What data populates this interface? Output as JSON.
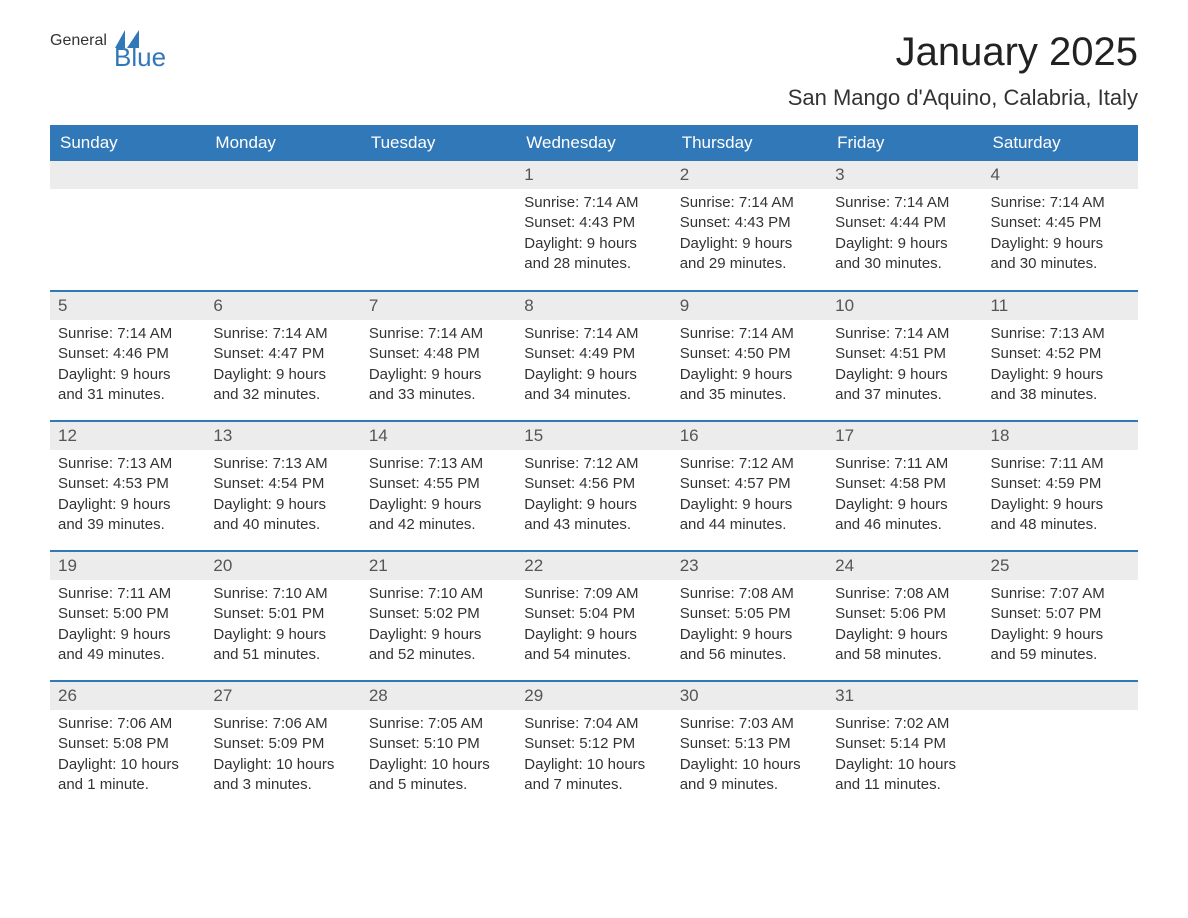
{
  "logo": {
    "text1": "General",
    "text2": "Blue"
  },
  "title": "January 2025",
  "location": "San Mango d'Aquino, Calabria, Italy",
  "colors": {
    "accent": "#3178b8",
    "header_text": "#ffffff",
    "day_num_bg": "#ececec",
    "body_text": "#333333",
    "background": "#ffffff"
  },
  "day_headers": [
    "Sunday",
    "Monday",
    "Tuesday",
    "Wednesday",
    "Thursday",
    "Friday",
    "Saturday"
  ],
  "weeks": [
    [
      {
        "blank": true
      },
      {
        "blank": true
      },
      {
        "blank": true
      },
      {
        "day": "1",
        "sunrise": "Sunrise: 7:14 AM",
        "sunset": "Sunset: 4:43 PM",
        "daylight": "Daylight: 9 hours and 28 minutes."
      },
      {
        "day": "2",
        "sunrise": "Sunrise: 7:14 AM",
        "sunset": "Sunset: 4:43 PM",
        "daylight": "Daylight: 9 hours and 29 minutes."
      },
      {
        "day": "3",
        "sunrise": "Sunrise: 7:14 AM",
        "sunset": "Sunset: 4:44 PM",
        "daylight": "Daylight: 9 hours and 30 minutes."
      },
      {
        "day": "4",
        "sunrise": "Sunrise: 7:14 AM",
        "sunset": "Sunset: 4:45 PM",
        "daylight": "Daylight: 9 hours and 30 minutes."
      }
    ],
    [
      {
        "day": "5",
        "sunrise": "Sunrise: 7:14 AM",
        "sunset": "Sunset: 4:46 PM",
        "daylight": "Daylight: 9 hours and 31 minutes."
      },
      {
        "day": "6",
        "sunrise": "Sunrise: 7:14 AM",
        "sunset": "Sunset: 4:47 PM",
        "daylight": "Daylight: 9 hours and 32 minutes."
      },
      {
        "day": "7",
        "sunrise": "Sunrise: 7:14 AM",
        "sunset": "Sunset: 4:48 PM",
        "daylight": "Daylight: 9 hours and 33 minutes."
      },
      {
        "day": "8",
        "sunrise": "Sunrise: 7:14 AM",
        "sunset": "Sunset: 4:49 PM",
        "daylight": "Daylight: 9 hours and 34 minutes."
      },
      {
        "day": "9",
        "sunrise": "Sunrise: 7:14 AM",
        "sunset": "Sunset: 4:50 PM",
        "daylight": "Daylight: 9 hours and 35 minutes."
      },
      {
        "day": "10",
        "sunrise": "Sunrise: 7:14 AM",
        "sunset": "Sunset: 4:51 PM",
        "daylight": "Daylight: 9 hours and 37 minutes."
      },
      {
        "day": "11",
        "sunrise": "Sunrise: 7:13 AM",
        "sunset": "Sunset: 4:52 PM",
        "daylight": "Daylight: 9 hours and 38 minutes."
      }
    ],
    [
      {
        "day": "12",
        "sunrise": "Sunrise: 7:13 AM",
        "sunset": "Sunset: 4:53 PM",
        "daylight": "Daylight: 9 hours and 39 minutes."
      },
      {
        "day": "13",
        "sunrise": "Sunrise: 7:13 AM",
        "sunset": "Sunset: 4:54 PM",
        "daylight": "Daylight: 9 hours and 40 minutes."
      },
      {
        "day": "14",
        "sunrise": "Sunrise: 7:13 AM",
        "sunset": "Sunset: 4:55 PM",
        "daylight": "Daylight: 9 hours and 42 minutes."
      },
      {
        "day": "15",
        "sunrise": "Sunrise: 7:12 AM",
        "sunset": "Sunset: 4:56 PM",
        "daylight": "Daylight: 9 hours and 43 minutes."
      },
      {
        "day": "16",
        "sunrise": "Sunrise: 7:12 AM",
        "sunset": "Sunset: 4:57 PM",
        "daylight": "Daylight: 9 hours and 44 minutes."
      },
      {
        "day": "17",
        "sunrise": "Sunrise: 7:11 AM",
        "sunset": "Sunset: 4:58 PM",
        "daylight": "Daylight: 9 hours and 46 minutes."
      },
      {
        "day": "18",
        "sunrise": "Sunrise: 7:11 AM",
        "sunset": "Sunset: 4:59 PM",
        "daylight": "Daylight: 9 hours and 48 minutes."
      }
    ],
    [
      {
        "day": "19",
        "sunrise": "Sunrise: 7:11 AM",
        "sunset": "Sunset: 5:00 PM",
        "daylight": "Daylight: 9 hours and 49 minutes."
      },
      {
        "day": "20",
        "sunrise": "Sunrise: 7:10 AM",
        "sunset": "Sunset: 5:01 PM",
        "daylight": "Daylight: 9 hours and 51 minutes."
      },
      {
        "day": "21",
        "sunrise": "Sunrise: 7:10 AM",
        "sunset": "Sunset: 5:02 PM",
        "daylight": "Daylight: 9 hours and 52 minutes."
      },
      {
        "day": "22",
        "sunrise": "Sunrise: 7:09 AM",
        "sunset": "Sunset: 5:04 PM",
        "daylight": "Daylight: 9 hours and 54 minutes."
      },
      {
        "day": "23",
        "sunrise": "Sunrise: 7:08 AM",
        "sunset": "Sunset: 5:05 PM",
        "daylight": "Daylight: 9 hours and 56 minutes."
      },
      {
        "day": "24",
        "sunrise": "Sunrise: 7:08 AM",
        "sunset": "Sunset: 5:06 PM",
        "daylight": "Daylight: 9 hours and 58 minutes."
      },
      {
        "day": "25",
        "sunrise": "Sunrise: 7:07 AM",
        "sunset": "Sunset: 5:07 PM",
        "daylight": "Daylight: 9 hours and 59 minutes."
      }
    ],
    [
      {
        "day": "26",
        "sunrise": "Sunrise: 7:06 AM",
        "sunset": "Sunset: 5:08 PM",
        "daylight": "Daylight: 10 hours and 1 minute."
      },
      {
        "day": "27",
        "sunrise": "Sunrise: 7:06 AM",
        "sunset": "Sunset: 5:09 PM",
        "daylight": "Daylight: 10 hours and 3 minutes."
      },
      {
        "day": "28",
        "sunrise": "Sunrise: 7:05 AM",
        "sunset": "Sunset: 5:10 PM",
        "daylight": "Daylight: 10 hours and 5 minutes."
      },
      {
        "day": "29",
        "sunrise": "Sunrise: 7:04 AM",
        "sunset": "Sunset: 5:12 PM",
        "daylight": "Daylight: 10 hours and 7 minutes."
      },
      {
        "day": "30",
        "sunrise": "Sunrise: 7:03 AM",
        "sunset": "Sunset: 5:13 PM",
        "daylight": "Daylight: 10 hours and 9 minutes."
      },
      {
        "day": "31",
        "sunrise": "Sunrise: 7:02 AM",
        "sunset": "Sunset: 5:14 PM",
        "daylight": "Daylight: 10 hours and 11 minutes."
      },
      {
        "blank": true
      }
    ]
  ]
}
